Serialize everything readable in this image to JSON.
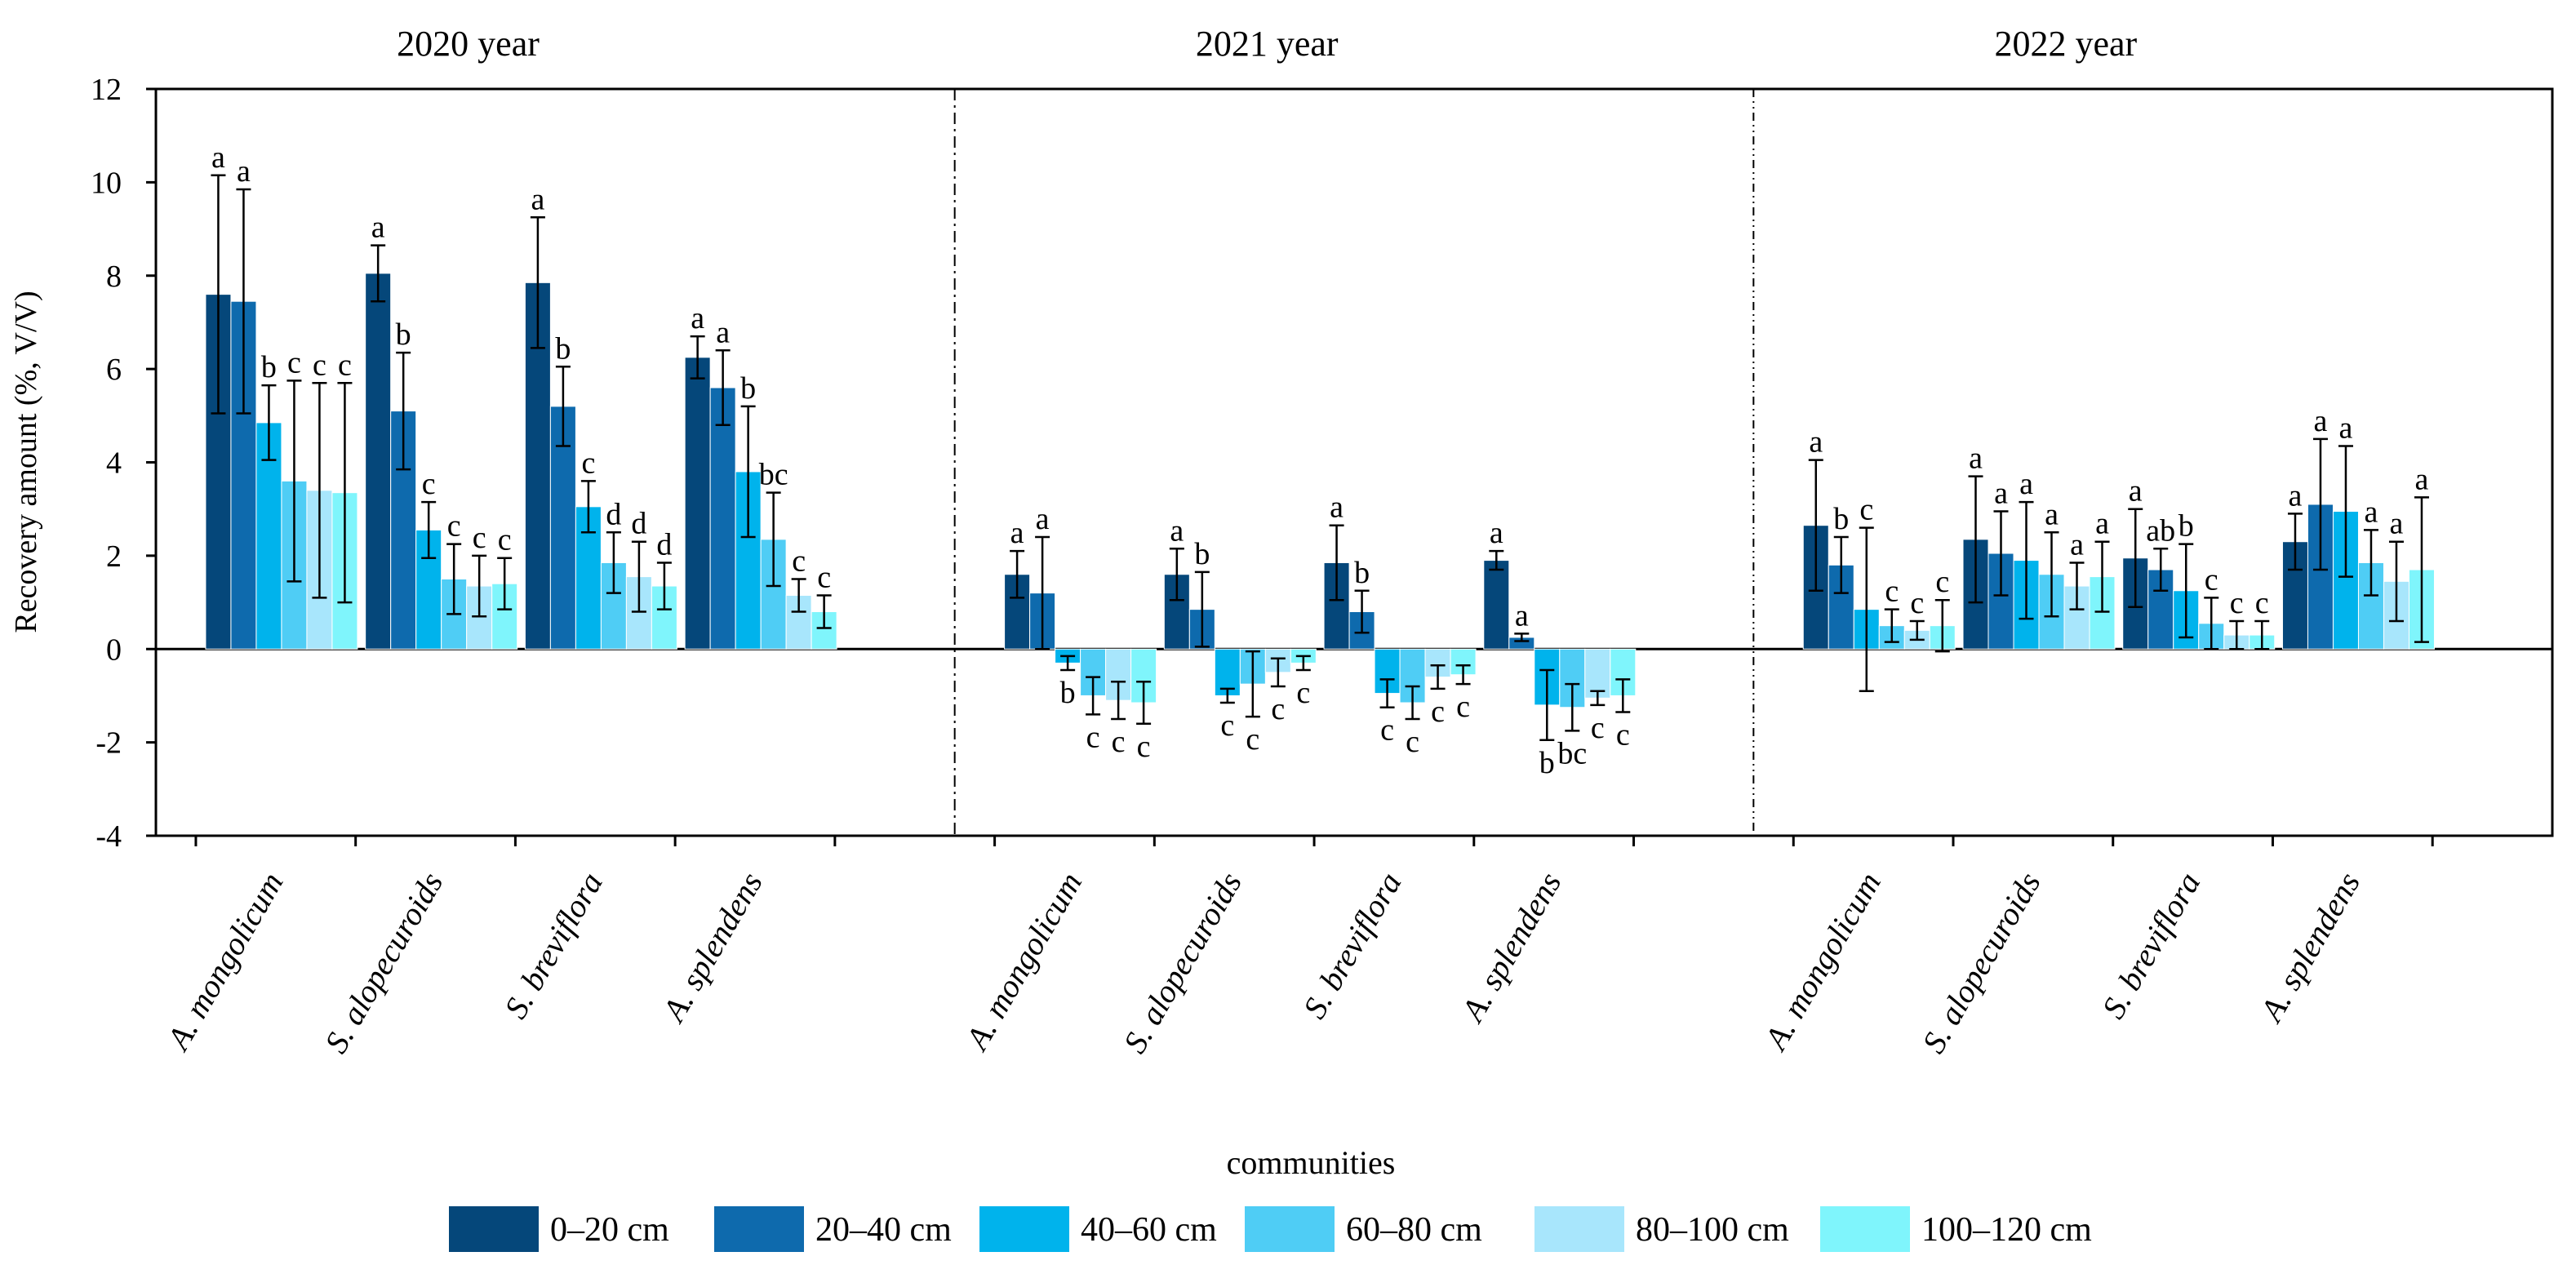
{
  "chart_data": {
    "type": "bar",
    "xlabel": "communities",
    "ylabel": "Recovery amount (%, V/V)",
    "ylim": [
      -4,
      12
    ],
    "yticks": [
      "-4",
      "-2",
      "0",
      "2",
      "4",
      "6",
      "8",
      "10",
      "12"
    ],
    "legend_position": "bottom",
    "colors": [
      "#05477a",
      "#0e6aad",
      "#00b3ec",
      "#4fcdf5",
      "#a8e6fc",
      "#7ff5fc"
    ],
    "series": [
      {
        "name": "0–20 cm"
      },
      {
        "name": "20–40 cm"
      },
      {
        "name": "40–60 cm"
      },
      {
        "name": "60–80 cm"
      },
      {
        "name": "80–100 cm"
      },
      {
        "name": "100–120 cm"
      }
    ],
    "panels": [
      {
        "title": "2020 year",
        "divider": "dash-dot",
        "groups": [
          {
            "label": "A. mongolicum",
            "values": [
              7.6,
              7.45,
              4.85,
              3.6,
              3.4,
              3.35
            ],
            "errors": [
              2.55,
              2.4,
              0.8,
              2.15,
              2.3,
              2.35
            ],
            "letters": [
              "a",
              "a",
              "b",
              "c",
              "c",
              "c"
            ]
          },
          {
            "label": "S. alopecuroids",
            "values": [
              8.05,
              5.1,
              2.55,
              1.5,
              1.35,
              1.4
            ],
            "errors": [
              0.6,
              1.25,
              0.6,
              0.75,
              0.65,
              0.55
            ],
            "letters": [
              "a",
              "b",
              "c",
              "c",
              "c",
              "c"
            ]
          },
          {
            "label": "S. breviflora",
            "values": [
              7.85,
              5.2,
              3.05,
              1.85,
              1.55,
              1.35
            ],
            "errors": [
              1.4,
              0.85,
              0.55,
              0.65,
              0.75,
              0.5
            ],
            "letters": [
              "a",
              "b",
              "c",
              "d",
              "d",
              "d"
            ]
          },
          {
            "label": "A. splendens",
            "values": [
              6.25,
              5.6,
              3.8,
              2.35,
              1.15,
              0.8
            ],
            "errors": [
              0.45,
              0.8,
              1.4,
              1.0,
              0.35,
              0.35
            ],
            "letters": [
              "a",
              "a",
              "b",
              "bc",
              "c",
              "c"
            ]
          }
        ]
      },
      {
        "title": "2021 year",
        "divider": "dash-dot-dot",
        "groups": [
          {
            "label": "A. mongolicum",
            "values": [
              1.6,
              1.2,
              -0.3,
              -1.0,
              -1.1,
              -1.15
            ],
            "errors": [
              0.5,
              1.2,
              0.15,
              0.4,
              0.4,
              0.45
            ],
            "letters": [
              "a",
              "a",
              "b",
              "c",
              "c",
              "c"
            ]
          },
          {
            "label": "S. alopecuroids",
            "values": [
              1.6,
              0.85,
              -1.0,
              -0.75,
              -0.5,
              -0.3
            ],
            "errors": [
              0.55,
              0.8,
              0.15,
              0.7,
              0.3,
              0.15
            ],
            "letters": [
              "a",
              "b",
              "c",
              "c",
              "c",
              "c"
            ]
          },
          {
            "label": "S. breviflora",
            "values": [
              1.85,
              0.8,
              -0.95,
              -1.15,
              -0.6,
              -0.55
            ],
            "errors": [
              0.8,
              0.45,
              0.3,
              0.35,
              0.25,
              0.2
            ],
            "letters": [
              "a",
              "b",
              "c",
              "c",
              "c",
              "c"
            ]
          },
          {
            "label": "A. splendens",
            "values": [
              1.9,
              0.25,
              -1.2,
              -1.25,
              -1.05,
              -1.0
            ],
            "errors": [
              0.2,
              0.08,
              0.75,
              0.5,
              0.15,
              0.35
            ],
            "letters": [
              "a",
              "a",
              "b",
              "bc",
              "c",
              "c"
            ]
          }
        ]
      },
      {
        "title": "2022 year",
        "groups": [
          {
            "label": "A. mongolicum",
            "values": [
              2.65,
              1.8,
              0.85,
              0.5,
              0.4,
              0.5
            ],
            "errors": [
              1.4,
              0.6,
              1.75,
              0.35,
              0.2,
              0.55
            ],
            "letters": [
              "a",
              "b",
              "c",
              "c",
              "c",
              "c"
            ]
          },
          {
            "label": "S. alopecuroids",
            "values": [
              2.35,
              2.05,
              1.9,
              1.6,
              1.35,
              1.55
            ],
            "errors": [
              1.35,
              0.9,
              1.25,
              0.9,
              0.5,
              0.75
            ],
            "letters": [
              "a",
              "a",
              "a",
              "a",
              "a",
              "a"
            ]
          },
          {
            "label": "S. breviflora",
            "values": [
              1.95,
              1.7,
              1.25,
              0.55,
              0.3,
              0.3
            ],
            "errors": [
              1.05,
              0.45,
              1.0,
              0.55,
              0.3,
              0.3
            ],
            "letters": [
              "a",
              "ab",
              "b",
              "c",
              "c",
              "c"
            ]
          },
          {
            "label": "A. splendens",
            "values": [
              2.3,
              3.1,
              2.95,
              1.85,
              1.45,
              1.7
            ],
            "errors": [
              0.6,
              1.4,
              1.4,
              0.7,
              0.85,
              1.55
            ],
            "letters": [
              "a",
              "a",
              "a",
              "a",
              "a",
              "a"
            ]
          }
        ]
      }
    ]
  }
}
